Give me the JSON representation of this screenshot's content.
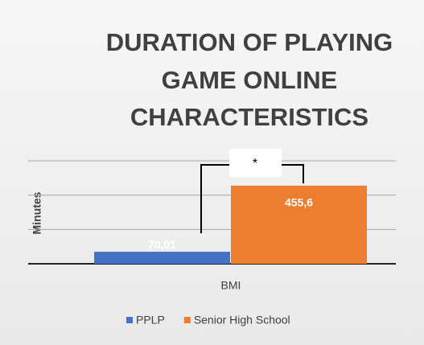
{
  "chart_data": {
    "type": "bar",
    "title": [
      "DURATION OF PLAYING",
      "GAME ONLINE",
      "CHARACTERISTICS"
    ],
    "categories": [
      "BMI"
    ],
    "x_label": "BMI",
    "y_label": "Minutes",
    "annotation": "*",
    "series": [
      {
        "name": "PPLP",
        "color": "#4472c4",
        "values": [
          70.01
        ],
        "value_labels": [
          "70,01"
        ]
      },
      {
        "name": "Senior High School",
        "color": "#ed7d31",
        "values": [
          455.6
        ],
        "value_labels": [
          "455,6"
        ]
      }
    ],
    "ylim": [
      0,
      600
    ],
    "yticks": [
      0,
      200,
      400,
      600
    ],
    "grid": true,
    "legend": "bottom"
  }
}
